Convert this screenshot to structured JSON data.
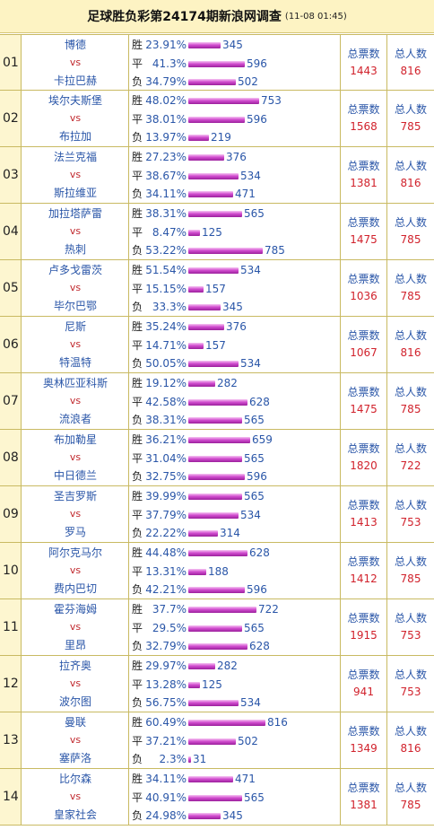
{
  "header": {
    "title": "足球胜负彩第24174期新浪网调查",
    "time": "(11-08 01:45)"
  },
  "labels": {
    "win": "胜",
    "draw": "平",
    "lose": "负",
    "vs": "vs",
    "total_votes": "总票数",
    "total_users": "总人数"
  },
  "colors": {
    "team": "#2a56a8",
    "number": "#d1222c",
    "bar": "#c43cc4",
    "header_bg": "#fdf3c3"
  },
  "matches": [
    {
      "no": "01",
      "home": "博德",
      "away": "卡拉巴赫",
      "win_pct": "23.91%",
      "win": 345,
      "draw_pct": "41.3%",
      "draw": 596,
      "lose_pct": "34.79%",
      "lose": 502,
      "votes": 1443,
      "users": 816
    },
    {
      "no": "02",
      "home": "埃尔夫斯堡",
      "away": "布拉加",
      "win_pct": "48.02%",
      "win": 753,
      "draw_pct": "38.01%",
      "draw": 596,
      "lose_pct": "13.97%",
      "lose": 219,
      "votes": 1568,
      "users": 785
    },
    {
      "no": "03",
      "home": "法兰克福",
      "away": "斯拉维亚",
      "win_pct": "27.23%",
      "win": 376,
      "draw_pct": "38.67%",
      "draw": 534,
      "lose_pct": "34.11%",
      "lose": 471,
      "votes": 1381,
      "users": 816
    },
    {
      "no": "04",
      "home": "加拉塔萨雷",
      "away": "热刺",
      "win_pct": "38.31%",
      "win": 565,
      "draw_pct": "8.47%",
      "draw": 125,
      "lose_pct": "53.22%",
      "lose": 785,
      "votes": 1475,
      "users": 785
    },
    {
      "no": "05",
      "home": "卢多戈雷茨",
      "away": "毕尔巴鄂",
      "win_pct": "51.54%",
      "win": 534,
      "draw_pct": "15.15%",
      "draw": 157,
      "lose_pct": "33.3%",
      "lose": 345,
      "votes": 1036,
      "users": 785
    },
    {
      "no": "06",
      "home": "尼斯",
      "away": "特温特",
      "win_pct": "35.24%",
      "win": 376,
      "draw_pct": "14.71%",
      "draw": 157,
      "lose_pct": "50.05%",
      "lose": 534,
      "votes": 1067,
      "users": 816
    },
    {
      "no": "07",
      "home": "奥林匹亚科斯",
      "away": "流浪者",
      "win_pct": "19.12%",
      "win": 282,
      "draw_pct": "42.58%",
      "draw": 628,
      "lose_pct": "38.31%",
      "lose": 565,
      "votes": 1475,
      "users": 785
    },
    {
      "no": "08",
      "home": "布加勒星",
      "away": "中日德兰",
      "win_pct": "36.21%",
      "win": 659,
      "draw_pct": "31.04%",
      "draw": 565,
      "lose_pct": "32.75%",
      "lose": 596,
      "votes": 1820,
      "users": 722
    },
    {
      "no": "09",
      "home": "圣吉罗斯",
      "away": "罗马",
      "win_pct": "39.99%",
      "win": 565,
      "draw_pct": "37.79%",
      "draw": 534,
      "lose_pct": "22.22%",
      "lose": 314,
      "votes": 1413,
      "users": 753
    },
    {
      "no": "10",
      "home": "阿尔克马尔",
      "away": "费内巴切",
      "win_pct": "44.48%",
      "win": 628,
      "draw_pct": "13.31%",
      "draw": 188,
      "lose_pct": "42.21%",
      "lose": 596,
      "votes": 1412,
      "users": 785
    },
    {
      "no": "11",
      "home": "霍芬海姆",
      "away": "里昂",
      "win_pct": "37.7%",
      "win": 722,
      "draw_pct": "29.5%",
      "draw": 565,
      "lose_pct": "32.79%",
      "lose": 628,
      "votes": 1915,
      "users": 753
    },
    {
      "no": "12",
      "home": "拉齐奥",
      "away": "波尔图",
      "win_pct": "29.97%",
      "win": 282,
      "draw_pct": "13.28%",
      "draw": 125,
      "lose_pct": "56.75%",
      "lose": 534,
      "votes": 941,
      "users": 753
    },
    {
      "no": "13",
      "home": "曼联",
      "away": "塞萨洛",
      "win_pct": "60.49%",
      "win": 816,
      "draw_pct": "37.21%",
      "draw": 502,
      "lose_pct": "2.3%",
      "lose": 31,
      "votes": 1349,
      "users": 816
    },
    {
      "no": "14",
      "home": "比尔森",
      "away": "皇家社会",
      "win_pct": "34.11%",
      "win": 471,
      "draw_pct": "40.91%",
      "draw": 565,
      "lose_pct": "24.98%",
      "lose": 345,
      "votes": 1381,
      "users": 785
    }
  ]
}
